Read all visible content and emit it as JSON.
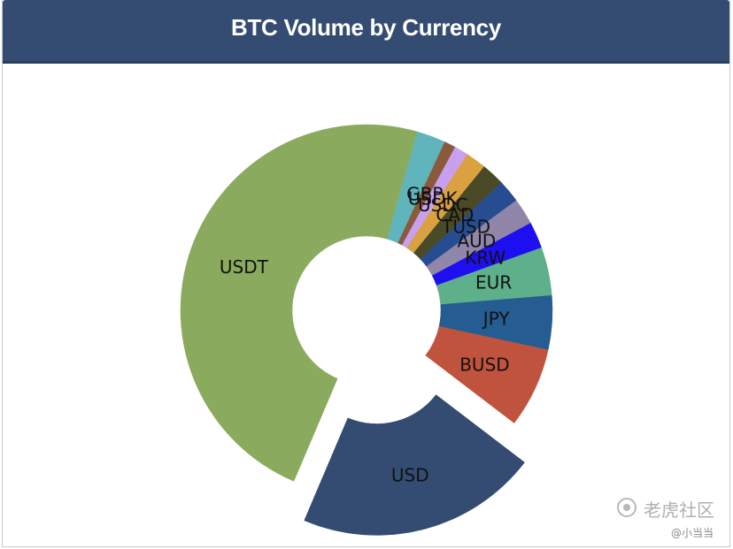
{
  "header": {
    "title": "BTC Volume by Currency"
  },
  "chart_data": {
    "type": "pie",
    "variant": "donut",
    "title": "BTC Volume by Currency",
    "slices": [
      {
        "label": "USD",
        "value": 21.0,
        "color": "#344c72",
        "exploded": true
      },
      {
        "label": "BUSD",
        "value": 7.0,
        "color": "#c0533e",
        "exploded": false
      },
      {
        "label": "JPY",
        "value": 4.7,
        "color": "#255c91",
        "exploded": false
      },
      {
        "label": "EUR",
        "value": 4.2,
        "color": "#5db08a",
        "exploded": false
      },
      {
        "label": "KRW",
        "value": 2.3,
        "color": "#1e0ff0",
        "exploded": false
      },
      {
        "label": "AUD",
        "value": 2.3,
        "color": "#8f86a9",
        "exploded": false
      },
      {
        "label": "TUSD",
        "value": 2.0,
        "color": "#264d92",
        "exploded": false
      },
      {
        "label": "CAD",
        "value": 2.0,
        "color": "#4a4a26",
        "exploded": false
      },
      {
        "label": "USDC",
        "value": 1.8,
        "color": "#d9a140",
        "exploded": false
      },
      {
        "label": "USDK",
        "value": 1.2,
        "color": "#c99ff0",
        "exploded": false
      },
      {
        "label": "GBP",
        "value": 1.0,
        "color": "#8b5a3c",
        "exploded": false
      },
      {
        "label": "",
        "value": 2.5,
        "color": "#60b5bc",
        "exploded": false
      },
      {
        "label": "USDT",
        "value": 48.0,
        "color": "#8aaa5e",
        "exploded": false
      }
    ]
  },
  "watermark": {
    "brand": "老虎社区",
    "user": "@小当当"
  }
}
